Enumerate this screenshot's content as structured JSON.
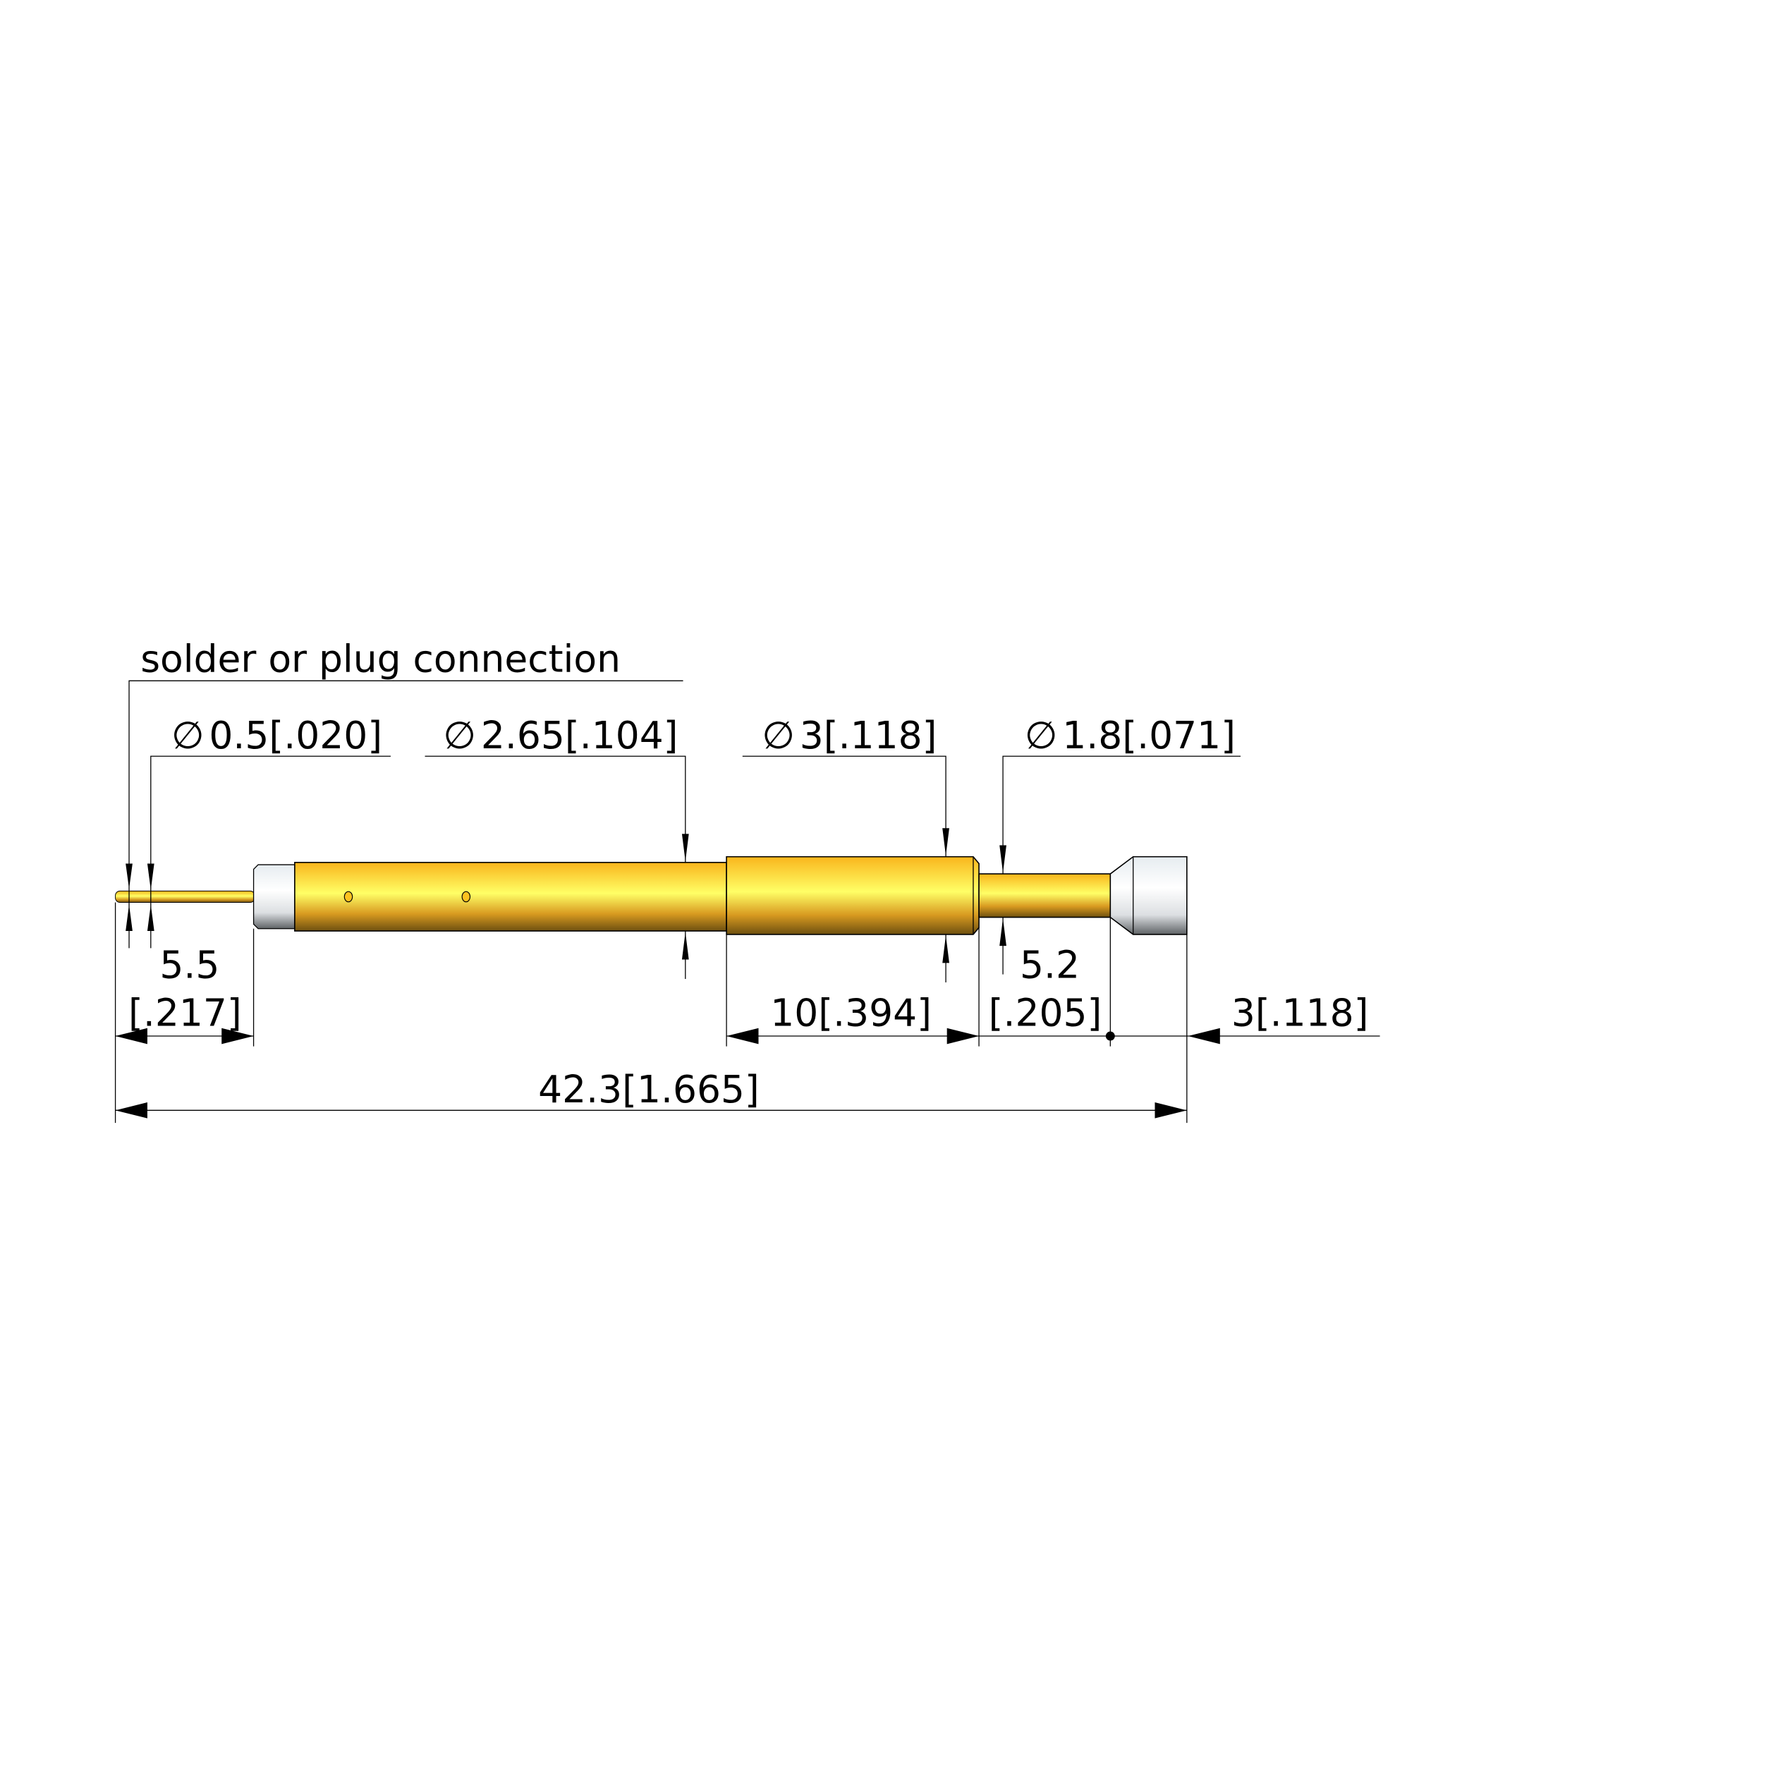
{
  "drawing": {
    "callout_connection": "solder or plug connection",
    "diameter_symbol": "∅",
    "dims": {
      "d_tip": "0.5[.020]",
      "d_barrel": "2.65[.104]",
      "d_body": "3[.118]",
      "d_neck": "1.8[.071]",
      "tip_length_mm": "5.5",
      "tip_length_in": "[.217]",
      "body_length": "10[.394]",
      "neck_length_mm": "5.2",
      "neck_length_in": "[.205]",
      "head_length": "3[.118]",
      "overall_length": "42.3[1.665]"
    },
    "colors": {
      "gold_light": "#ffff66",
      "gold_mid": "#fcc220",
      "gold_dark": "#7a5a10",
      "insulator_light": "#f0f4f8",
      "insulator_dark": "#5f6366"
    }
  }
}
